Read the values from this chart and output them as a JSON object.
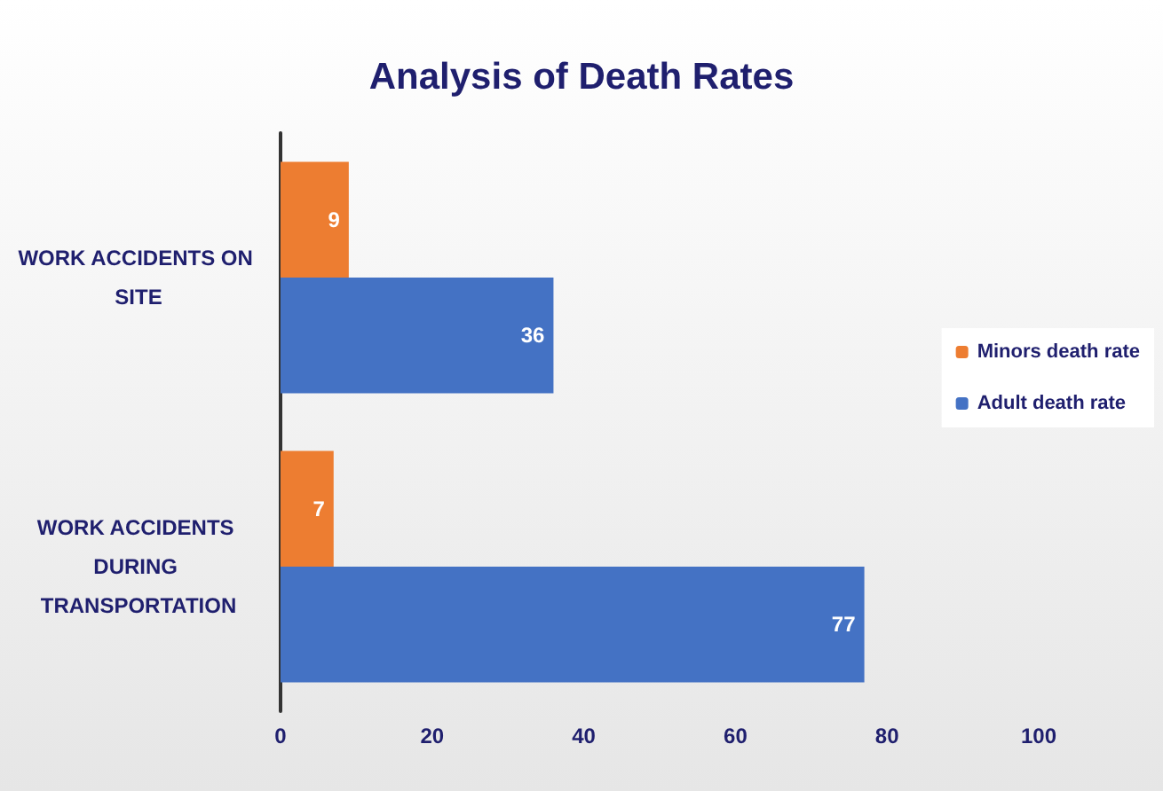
{
  "chart_data": {
    "type": "bar",
    "orientation": "horizontal",
    "title": "Analysis of Death Rates",
    "categories": [
      "WORK ACCIDENTS ON SITE",
      "WORK ACCIDENTS DURING TRANSPORTATION"
    ],
    "series": [
      {
        "name": "Minors death rate",
        "color": "#ed7d31",
        "values": [
          9,
          7
        ]
      },
      {
        "name": "Adult death rate",
        "color": "#4472c4",
        "values": [
          36,
          77
        ]
      }
    ],
    "xlim": [
      0,
      100
    ],
    "xticks": [
      0,
      20,
      40,
      60,
      80,
      100
    ],
    "data_labels": true,
    "legend": "right",
    "grid": false
  }
}
